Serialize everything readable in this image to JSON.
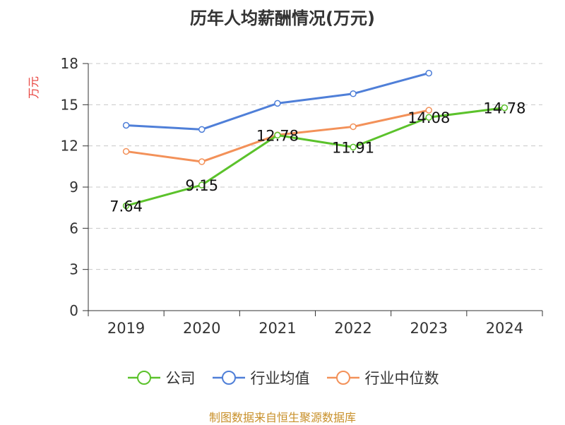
{
  "chart_data": {
    "type": "line",
    "title": "历年人均薪酬情况(万元)",
    "ylabel": "万元",
    "xlabel": "",
    "ylim": [
      0,
      18
    ],
    "yticks": [
      0,
      3,
      6,
      9,
      12,
      15,
      18
    ],
    "categories": [
      "2019",
      "2020",
      "2021",
      "2022",
      "2023",
      "2024"
    ],
    "grid": true,
    "legend_position": "bottom",
    "series": [
      {
        "name": "公司",
        "color": "#5bc22b",
        "values": [
          7.64,
          9.15,
          12.78,
          11.91,
          14.08,
          14.78
        ],
        "labels": true
      },
      {
        "name": "行业均值",
        "color": "#4f7fd8",
        "values": [
          13.5,
          13.2,
          15.1,
          15.8,
          17.3,
          null
        ],
        "labels": false
      },
      {
        "name": "行业中位数",
        "color": "#f39159",
        "values": [
          11.6,
          10.85,
          12.8,
          13.4,
          14.6,
          null
        ],
        "labels": false
      }
    ],
    "data_labels": [
      "7.64",
      "9.15",
      "12.78",
      "11.91",
      "14.08",
      "14.78"
    ]
  },
  "footer": {
    "source": "制图数据来自恒生聚源数据库"
  }
}
